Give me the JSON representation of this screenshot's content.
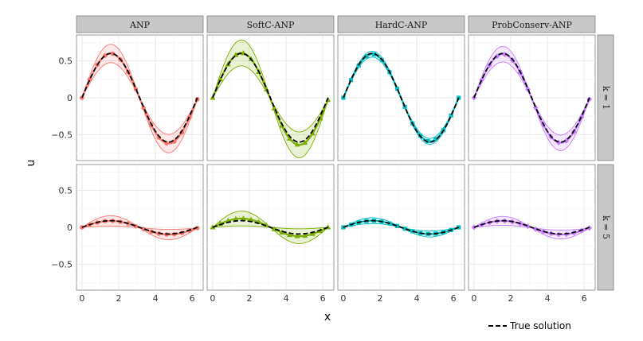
{
  "chart_data": {
    "type": "line",
    "xlabel": "x",
    "ylabel": "u",
    "xlim": [
      -0.3,
      6.6
    ],
    "ylim": [
      -0.85,
      0.85
    ],
    "x_ticks": [
      0,
      2,
      4,
      6
    ],
    "x_tick_labels": [
      "0",
      "2",
      "4",
      "6"
    ],
    "y_ticks": [
      -0.5,
      0,
      0.5
    ],
    "y_tick_labels": [
      "−0.5",
      "0",
      "0.5"
    ],
    "grid": true,
    "legend_position": "bottom-right",
    "columns": [
      {
        "label": "ANP",
        "color": "#F8766D",
        "marker": "circle"
      },
      {
        "label": "SoftC-ANP",
        "color": "#7CAE00",
        "marker": "triangle"
      },
      {
        "label": "HardC-ANP",
        "color": "#00BFC4",
        "marker": "square"
      },
      {
        "label": "ProbConserv-ANP",
        "color": "#C77CFF",
        "marker": "diamond"
      }
    ],
    "rows": [
      {
        "label": "k = 1",
        "amplitude": 0.6
      },
      {
        "label": "k = 5",
        "amplitude": 0.09
      }
    ],
    "true_solution": {
      "name": "True solution",
      "style": "dashed",
      "color": "#000000"
    },
    "uncertainty_band": {
      "k = 1": {
        "ANP": {
          "upper": 0.73,
          "lower": 0.48,
          "right_end": -0.02
        },
        "SoftC-ANP": {
          "upper": 0.79,
          "lower": 0.44,
          "right_end": -0.03
        },
        "HardC-ANP": {
          "upper": 0.63,
          "lower": 0.55,
          "right_end": 0.0
        },
        "ProbConserv-ANP": {
          "upper": 0.7,
          "lower": 0.49,
          "right_end": -0.02
        }
      },
      "k = 5": {
        "ANP": {
          "upper": 0.16,
          "lower": 0.02,
          "right_end": -0.01
        },
        "SoftC-ANP": {
          "upper": 0.22,
          "lower": 0.02,
          "right_end": 0.0
        },
        "HardC-ANP": {
          "upper": 0.13,
          "lower": 0.05,
          "right_end": 0.0
        },
        "ProbConserv-ANP": {
          "upper": 0.15,
          "lower": 0.03,
          "right_end": -0.01
        }
      }
    }
  }
}
